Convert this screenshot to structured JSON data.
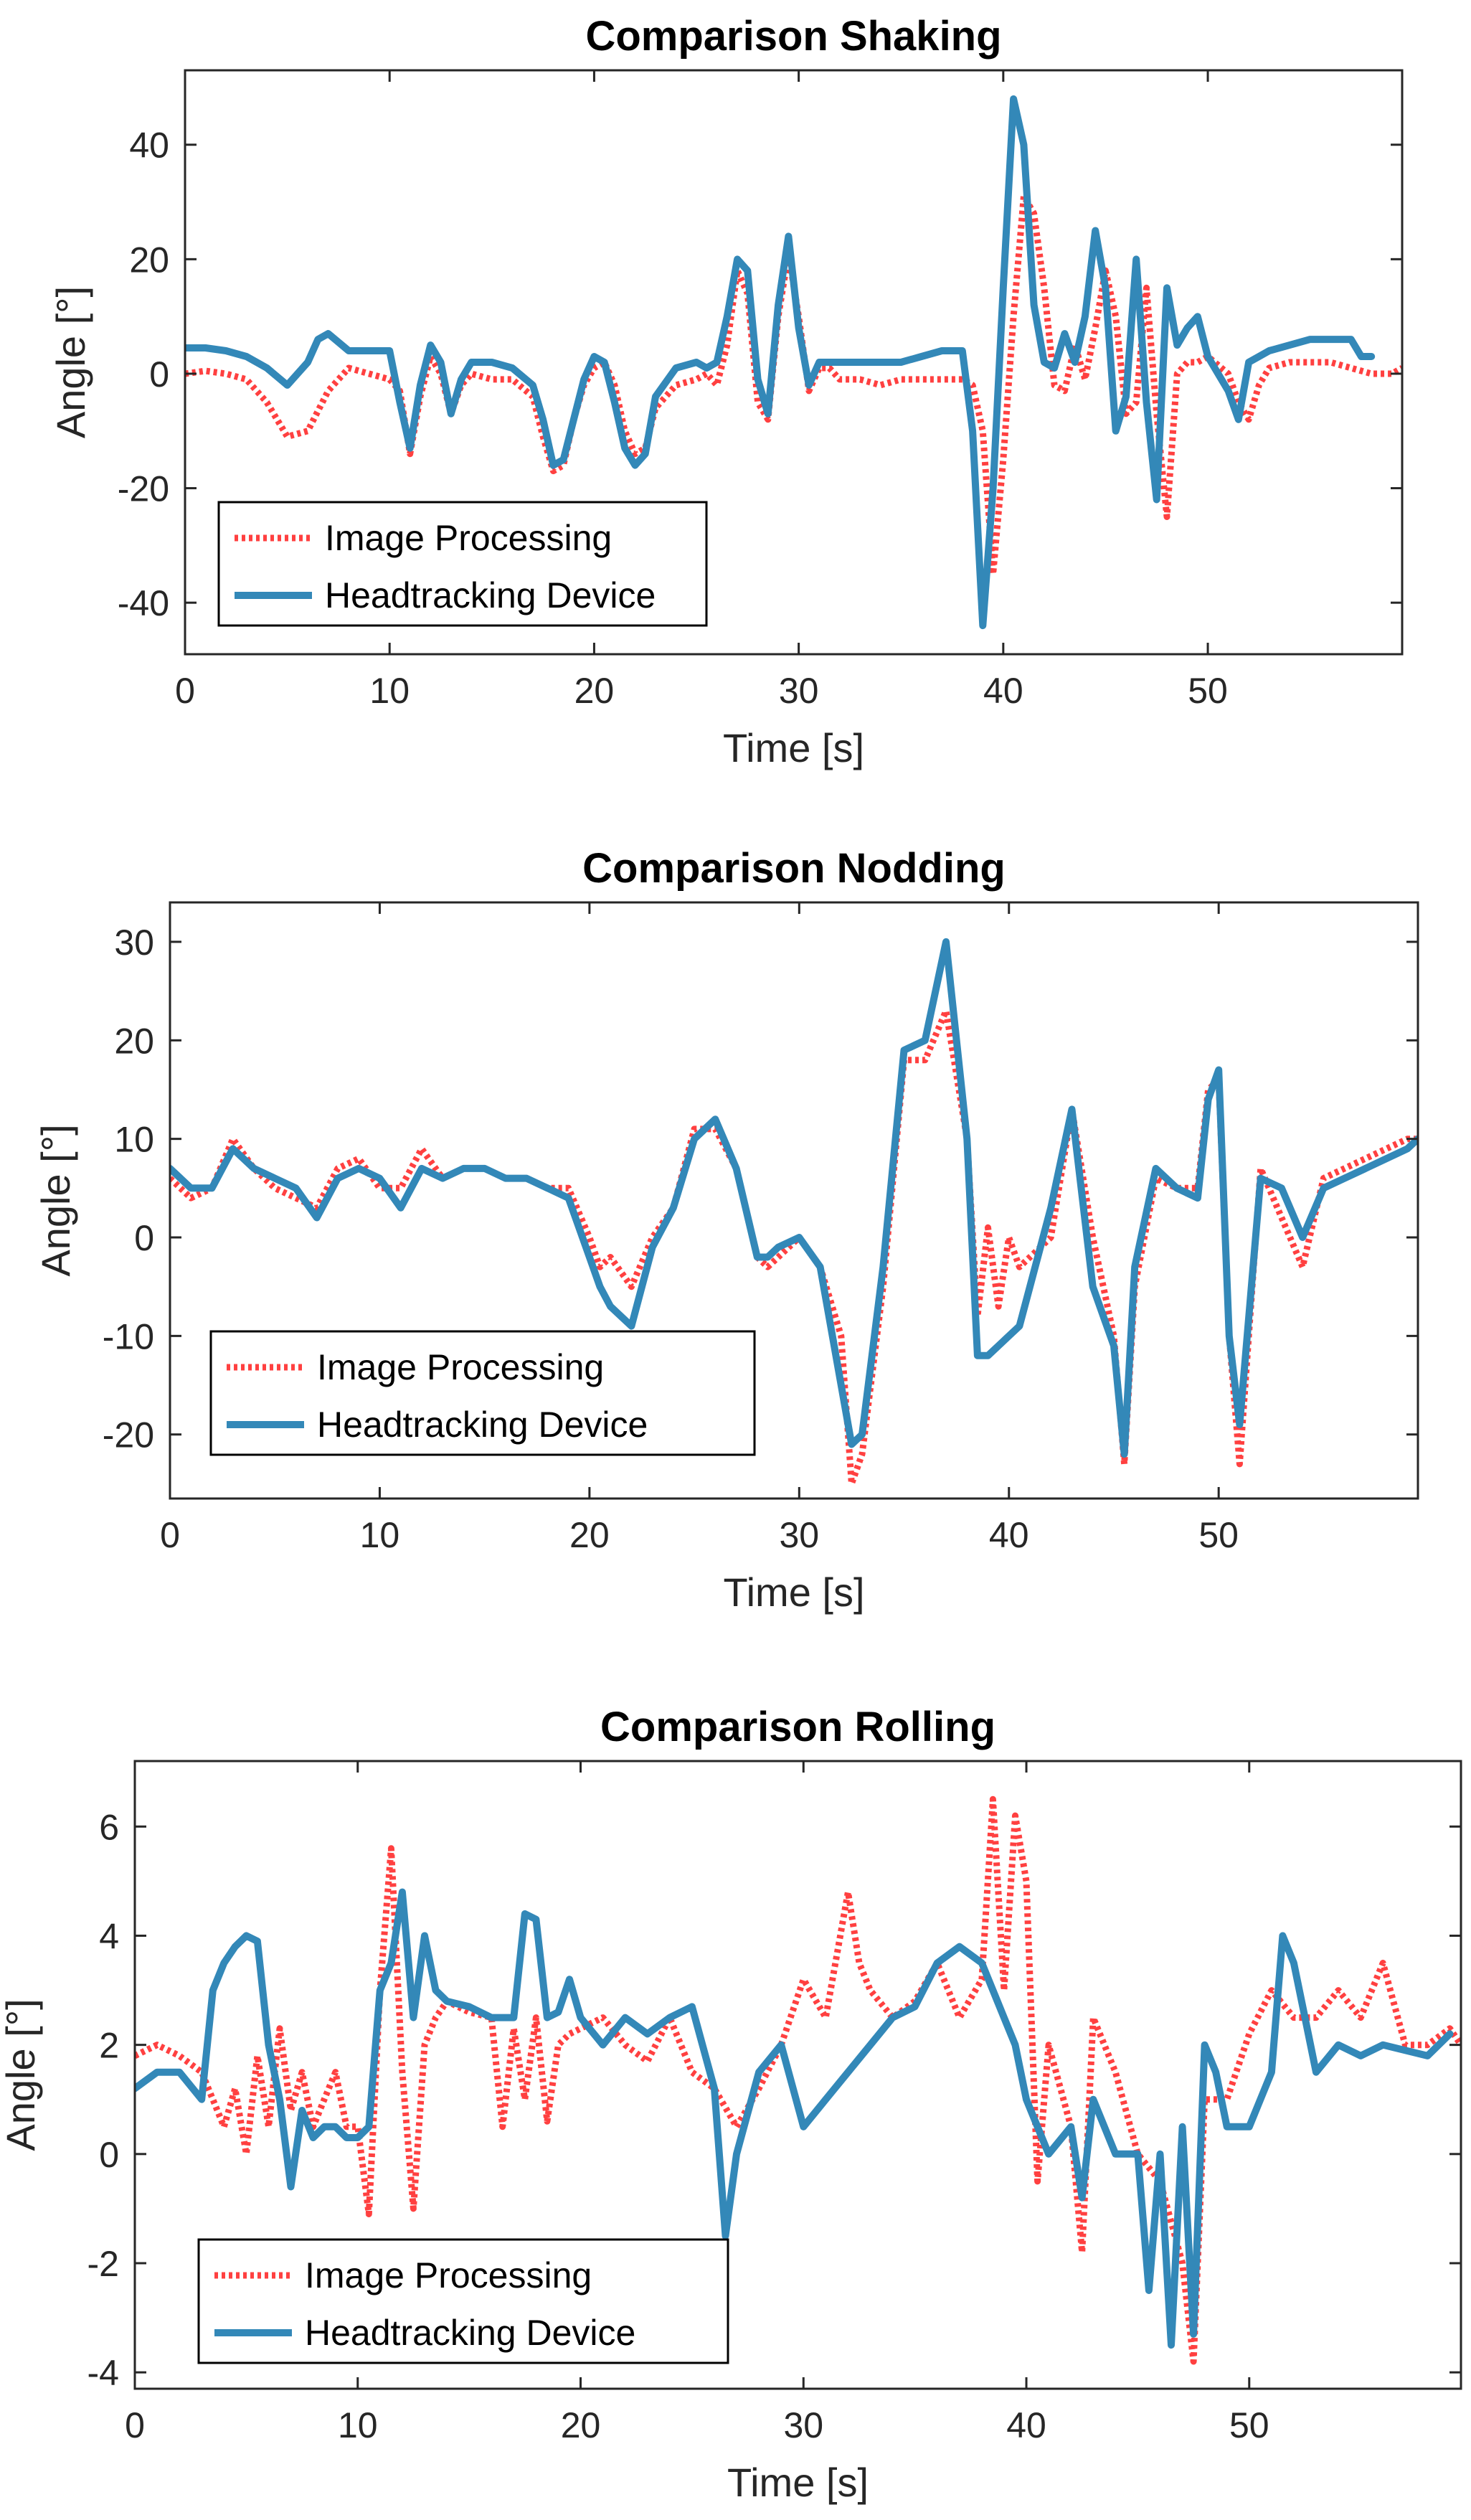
{
  "colors": {
    "image_processing": "#ff4040",
    "headtracking": "#3388b8",
    "axis": "#262626",
    "background": "#ffffff"
  },
  "chart_data": [
    {
      "type": "line",
      "title": "Comparison Shaking",
      "xlabel": "Time [s]",
      "ylabel": "Angle [°]",
      "xlim": [
        0,
        59.5
      ],
      "ylim": [
        -49,
        53
      ],
      "xticks": [
        0,
        10,
        20,
        30,
        40,
        50
      ],
      "yticks": [
        -40,
        -20,
        0,
        20,
        40
      ],
      "legend_position": "bottom-left",
      "grid": false,
      "series": [
        {
          "name": "Image Processing",
          "style": "dotted",
          "color": "#ff4040",
          "x": [
            0,
            1,
            2,
            3,
            4,
            5,
            6,
            7,
            8,
            9,
            10,
            10.5,
            11,
            11.5,
            12,
            12.5,
            13,
            13.5,
            14,
            15,
            16,
            17,
            17.5,
            18,
            18.5,
            19,
            19.5,
            20,
            20.5,
            21,
            21.5,
            22,
            22.5,
            23,
            24,
            25,
            25.5,
            26,
            26.5,
            27,
            27.5,
            28,
            28.5,
            29,
            29.5,
            30,
            30.5,
            31,
            31.5,
            32,
            33,
            34,
            35,
            36,
            37,
            38,
            38.5,
            39,
            39.5,
            40,
            40.5,
            41,
            41.5,
            42,
            42.5,
            43,
            43.5,
            44,
            44.5,
            45,
            45.5,
            46,
            46.5,
            47,
            47.5,
            48,
            48.5,
            49,
            49.5,
            50,
            51,
            51.5,
            52,
            52.5,
            53,
            54,
            55,
            56,
            57,
            58,
            59,
            59.5
          ],
          "y": [
            0,
            0.5,
            0,
            -1,
            -5,
            -11,
            -10,
            -3,
            1,
            0,
            -1,
            -3,
            -14,
            -4,
            3,
            0,
            -7,
            -2,
            0,
            -1,
            -1,
            -4,
            -11,
            -17,
            -16,
            -8,
            -2,
            1,
            2,
            -2,
            -10,
            -14,
            -13,
            -6,
            -2,
            -1,
            0,
            -2,
            5,
            18,
            14,
            -5,
            -8,
            10,
            21,
            10,
            -3,
            1,
            1,
            -1,
            -1,
            -2,
            -1,
            -1,
            -1,
            -1,
            -2,
            -10,
            -35,
            -15,
            10,
            31,
            28,
            15,
            -2,
            -3,
            5,
            -1,
            8,
            18,
            10,
            -7,
            -5,
            15,
            -7,
            -25,
            0,
            2,
            2,
            3,
            0,
            -5,
            -8,
            -2,
            1,
            2,
            2,
            2,
            1,
            0,
            0,
            1
          ]
        },
        {
          "name": "Headtracking Device",
          "style": "solid",
          "color": "#3388b8",
          "x": [
            0,
            1,
            2,
            3,
            4,
            5,
            6,
            6.5,
            7,
            8,
            9,
            10,
            10.5,
            11,
            11.5,
            12,
            12.5,
            13,
            13.5,
            14,
            15,
            16,
            17,
            17.5,
            18,
            18.5,
            19,
            19.5,
            20,
            20.5,
            21,
            21.5,
            22,
            22.5,
            23,
            24,
            25,
            25.5,
            26,
            26.5,
            27,
            27.5,
            28,
            28.5,
            29,
            29.5,
            30,
            30.5,
            31,
            31.5,
            32,
            33,
            34,
            35,
            36,
            37,
            38,
            38.5,
            39,
            39.5,
            40,
            40.5,
            41,
            41.5,
            42,
            42.5,
            43,
            43.5,
            44,
            44.5,
            45,
            45.5,
            46,
            46.5,
            47,
            47.5,
            48,
            48.5,
            49,
            49.5,
            50,
            51,
            51.5,
            52,
            52.5,
            53,
            54,
            55,
            56,
            57,
            57.5,
            58
          ],
          "y": [
            4.5,
            4.5,
            4,
            3,
            1,
            -2,
            2,
            6,
            7,
            4,
            4,
            4,
            -5,
            -13,
            -2,
            5,
            2,
            -7,
            -1,
            2,
            2,
            1,
            -2,
            -8,
            -16,
            -15,
            -8,
            -1,
            3,
            2,
            -5,
            -13,
            -16,
            -14,
            -4,
            1,
            2,
            1,
            2,
            10,
            20,
            18,
            -1,
            -7,
            12,
            24,
            8,
            -2,
            2,
            2,
            2,
            2,
            2,
            2,
            3,
            4,
            4,
            -10,
            -44,
            -20,
            15,
            48,
            40,
            12,
            2,
            1,
            7,
            2,
            10,
            25,
            15,
            -10,
            -4,
            20,
            -5,
            -22,
            15,
            5,
            8,
            10,
            3,
            -3,
            -8,
            2,
            3,
            4,
            5,
            6,
            6,
            6,
            3,
            3
          ]
        }
      ]
    },
    {
      "type": "line",
      "title": "Comparison Nodding",
      "xlabel": "Time [s]",
      "ylabel": "Angle [°]",
      "xlim": [
        0,
        59.5
      ],
      "ylim": [
        -26.5,
        34
      ],
      "xticks": [
        0,
        10,
        20,
        30,
        40,
        50
      ],
      "yticks": [
        -20,
        -10,
        0,
        10,
        20,
        30
      ],
      "legend_position": "bottom-left",
      "grid": false,
      "series": [
        {
          "name": "Image Processing",
          "style": "dotted",
          "color": "#ff4040",
          "x": [
            0,
            1,
            2,
            3,
            4,
            5,
            6,
            7,
            8,
            9,
            10,
            11,
            12,
            13,
            14,
            15,
            16,
            17,
            18,
            19,
            20,
            20.5,
            21,
            22,
            23,
            24,
            25,
            26,
            27,
            28,
            28.5,
            29,
            30,
            31,
            32,
            32.5,
            33,
            34,
            35,
            36,
            37,
            38,
            38.5,
            39,
            39.5,
            40,
            40.5,
            41,
            42,
            43,
            44,
            45,
            45.5,
            46,
            47,
            48,
            49,
            49.5,
            50,
            50.5,
            51,
            52,
            53,
            54,
            55,
            56,
            57,
            58,
            59,
            59.5
          ],
          "y": [
            6,
            4,
            5,
            10,
            7,
            5,
            4,
            3,
            7,
            8,
            5,
            5,
            9,
            6,
            7,
            7,
            6,
            6,
            5,
            5,
            0,
            -3,
            -2,
            -5,
            0,
            3,
            11,
            11,
            7,
            -2,
            -3,
            -2,
            0,
            -3,
            -10,
            -25,
            -22,
            -5,
            18,
            18,
            23,
            10,
            -8,
            1,
            -7,
            0,
            -3,
            -2,
            0,
            13,
            0,
            -10,
            -23,
            -5,
            6,
            5,
            5,
            15,
            16,
            -10,
            -23,
            7,
            2,
            -3,
            6,
            7,
            8,
            9,
            10,
            10
          ]
        },
        {
          "name": "Headtracking Device",
          "style": "solid",
          "color": "#3388b8",
          "x": [
            0,
            1,
            2,
            3,
            4,
            5,
            6,
            7,
            8,
            9,
            10,
            11,
            12,
            13,
            14,
            15,
            16,
            17,
            18,
            19,
            20,
            20.5,
            21,
            22,
            23,
            24,
            25,
            26,
            27,
            28,
            28.5,
            29,
            30,
            31,
            32,
            32.5,
            33,
            34,
            35,
            36,
            37,
            38,
            38.5,
            39,
            39.5,
            40,
            40.5,
            41,
            42,
            43,
            44,
            45,
            45.5,
            46,
            47,
            48,
            49,
            49.5,
            50,
            50.5,
            51,
            52,
            53,
            54,
            55,
            56,
            57,
            58,
            59,
            59.5
          ],
          "y": [
            7,
            5,
            5,
            9,
            7,
            6,
            5,
            2,
            6,
            7,
            6,
            3,
            7,
            6,
            7,
            7,
            6,
            6,
            5,
            4,
            -2,
            -5,
            -7,
            -9,
            -1,
            3,
            10,
            12,
            7,
            -2,
            -2,
            -1,
            0,
            -3,
            -15,
            -21,
            -20,
            -3,
            19,
            20,
            30,
            10,
            -12,
            -12,
            -11,
            -10,
            -9,
            -5,
            3,
            13,
            -5,
            -11,
            -22,
            -3,
            7,
            5,
            4,
            14,
            17,
            -10,
            -19,
            6,
            5,
            0,
            5,
            6,
            7,
            8,
            9,
            10
          ]
        }
      ]
    },
    {
      "type": "line",
      "title": "Comparison Rolling",
      "xlabel": "Time [s]",
      "ylabel": "Angle [°]",
      "xlim": [
        0,
        59.5
      ],
      "ylim": [
        -4.3,
        7.2
      ],
      "xticks": [
        0,
        10,
        20,
        30,
        40,
        50
      ],
      "yticks": [
        -4,
        -2,
        0,
        2,
        4,
        6
      ],
      "legend_position": "bottom-left",
      "grid": false,
      "series": [
        {
          "name": "Image Processing",
          "style": "dotted",
          "color": "#ff4040",
          "x": [
            0,
            1,
            2,
            3,
            4,
            4.5,
            5,
            5.5,
            6,
            6.5,
            7,
            7.5,
            8,
            8.5,
            9,
            9.5,
            10,
            10.5,
            11,
            11.5,
            12,
            12.5,
            13,
            13.5,
            14,
            15,
            16,
            16.5,
            17,
            17.5,
            18,
            18.5,
            19,
            19.5,
            20,
            21,
            22,
            23,
            24,
            25,
            26,
            27,
            28,
            29,
            30,
            31,
            32,
            32.5,
            33,
            34,
            35,
            36,
            37,
            38,
            38.5,
            39,
            39.5,
            40,
            40.5,
            41,
            42,
            42.5,
            43,
            44,
            45,
            46,
            47,
            47.5,
            48,
            49,
            50,
            51,
            52,
            53,
            54,
            55,
            56,
            57,
            58,
            59,
            59.5
          ],
          "y": [
            1.8,
            2,
            1.8,
            1.5,
            0.5,
            1.2,
            0,
            1.8,
            0.5,
            2.3,
            0.8,
            1.5,
            0.5,
            1,
            1.5,
            0.5,
            0.5,
            -1.1,
            3,
            5.6,
            1.5,
            -1,
            2,
            2.5,
            2.8,
            2.6,
            2.5,
            0.5,
            2.3,
            1,
            2.5,
            0.6,
            2,
            2.2,
            2.3,
            2.5,
            2,
            1.7,
            2.5,
            1.5,
            1.2,
            0.5,
            1.2,
            2,
            3.2,
            2.5,
            4.8,
            3.5,
            3,
            2.5,
            2.8,
            3.5,
            2.5,
            3.2,
            6.5,
            3,
            6.2,
            5,
            -0.5,
            2,
            0.5,
            -1.8,
            2.5,
            1.5,
            0,
            -0.5,
            -2,
            -3.8,
            1,
            1,
            2.2,
            3,
            2.5,
            2.5,
            3,
            2.5,
            3.5,
            2,
            2,
            2.3,
            2
          ]
        },
        {
          "name": "Headtracking Device",
          "style": "solid",
          "color": "#3388b8",
          "x": [
            0,
            1,
            2,
            3,
            3.5,
            4,
            4.5,
            5,
            5.5,
            6,
            6.5,
            7,
            7.5,
            8,
            8.5,
            9,
            9.5,
            10,
            10.5,
            11,
            11.5,
            12,
            12.5,
            13,
            13.5,
            14,
            15,
            16,
            17,
            17.5,
            18,
            18.5,
            19,
            19.5,
            20,
            21,
            22,
            23,
            24,
            25,
            26,
            26.5,
            27,
            28,
            29,
            30,
            31,
            32,
            33,
            34,
            35,
            36,
            37,
            38,
            39,
            39.5,
            40,
            41,
            42,
            42.5,
            43,
            44,
            45,
            45.5,
            46,
            46.5,
            47,
            47.5,
            48,
            48.5,
            49,
            50,
            51,
            51.5,
            52,
            52.5,
            53,
            54,
            55,
            56,
            57,
            58,
            59
          ],
          "y": [
            1.2,
            1.5,
            1.5,
            1,
            3,
            3.5,
            3.8,
            4,
            3.9,
            2,
            1,
            -0.6,
            0.8,
            0.3,
            0.5,
            0.5,
            0.3,
            0.3,
            0.5,
            3,
            3.5,
            4.8,
            2.5,
            4,
            3,
            2.8,
            2.7,
            2.5,
            2.5,
            4.4,
            4.3,
            2.5,
            2.6,
            3.2,
            2.5,
            2,
            2.5,
            2.2,
            2.5,
            2.7,
            1.2,
            -1.5,
            0,
            1.5,
            2,
            0.5,
            1,
            1.5,
            2,
            2.5,
            2.7,
            3.5,
            3.8,
            3.5,
            2.5,
            2,
            1,
            0,
            0.5,
            -0.8,
            1,
            0,
            0,
            -2.5,
            0,
            -3.5,
            0.5,
            -3.3,
            2,
            1.5,
            0.5,
            0.5,
            1.5,
            4,
            3.5,
            2.5,
            1.5,
            2,
            1.8,
            2,
            1.9,
            1.8,
            2.2
          ]
        }
      ]
    }
  ]
}
